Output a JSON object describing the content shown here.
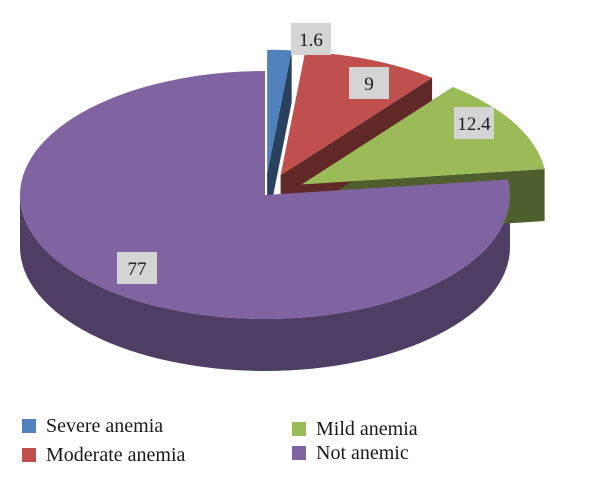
{
  "chart_data": {
    "type": "pie",
    "categories": [
      "Severe anemia",
      "Moderate anemia",
      "Mild anemia",
      "Not anemic"
    ],
    "values": [
      1.6,
      9,
      12.4,
      77
    ],
    "labels": [
      "1.6",
      "9",
      "12.4",
      "77"
    ],
    "colors": {
      "Severe anemia": "#4f81bd",
      "Moderate anemia": "#c0504d",
      "Mild anemia": "#9bbb59",
      "Not anemic": "#8064a2"
    },
    "exploded": true,
    "view": "3d",
    "legend_position": "bottom"
  }
}
